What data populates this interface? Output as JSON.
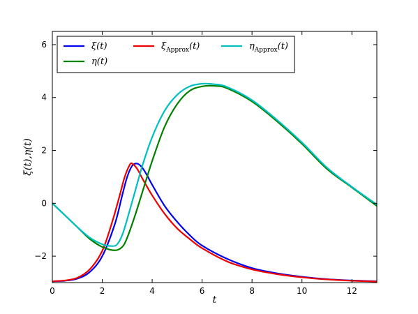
{
  "chart_data": {
    "type": "line",
    "title": "",
    "xlabel": "t",
    "ylabel": "ξ(t),η(t)",
    "xlim": [
      0,
      13
    ],
    "ylim": [
      -3,
      6.5
    ],
    "xticks": [
      0,
      2,
      4,
      6,
      8,
      10,
      12
    ],
    "yticks": [
      -2,
      0,
      2,
      4,
      6
    ],
    "xtick_labels": [
      "0",
      "2",
      "4",
      "6",
      "8",
      "10",
      "12"
    ],
    "ytick_labels": [
      "−2",
      "0",
      "2",
      "4",
      "6"
    ],
    "grid": false,
    "legend_placement": "top",
    "legend": [
      {
        "main": "ξ(t)",
        "sub": "",
        "tail": "",
        "color": "#0000ee"
      },
      {
        "main": "ξ",
        "sub": "Approx",
        "tail": "(t)",
        "color": "#ee0000"
      },
      {
        "main": "η",
        "sub": "Approx",
        "tail": "(t)",
        "color": "#00bfbf"
      },
      {
        "main": "η(t)",
        "sub": "",
        "tail": "",
        "color": "#008000"
      }
    ],
    "series": [
      {
        "name": "ξ(t)",
        "color": "#0000ee",
        "x": [
          0,
          0.5,
          1.0,
          1.5,
          2.0,
          2.5,
          2.8,
          3.0,
          3.2,
          3.4,
          3.6,
          3.8,
          4.0,
          4.5,
          5.0,
          5.5,
          6.0,
          7.0,
          8.0,
          9.0,
          10.0,
          11.0,
          12.0,
          13.0
        ],
        "y": [
          -2.95,
          -2.93,
          -2.85,
          -2.6,
          -2.0,
          -0.8,
          0.3,
          1.0,
          1.42,
          1.5,
          1.35,
          1.05,
          0.7,
          -0.1,
          -0.7,
          -1.2,
          -1.6,
          -2.1,
          -2.45,
          -2.65,
          -2.78,
          -2.87,
          -2.92,
          -2.95
        ]
      },
      {
        "name": "ξ_Approx(t)",
        "color": "#ee0000",
        "x": [
          0,
          0.5,
          1.0,
          1.5,
          2.0,
          2.4,
          2.7,
          2.9,
          3.1,
          3.2,
          3.4,
          3.6,
          4.0,
          4.5,
          5.0,
          5.5,
          6.0,
          7.0,
          8.0,
          9.0,
          10.0,
          11.0,
          12.0,
          13.0
        ],
        "y": [
          -2.95,
          -2.92,
          -2.82,
          -2.5,
          -1.8,
          -0.7,
          0.3,
          1.0,
          1.45,
          1.5,
          1.3,
          0.95,
          0.3,
          -0.4,
          -0.95,
          -1.35,
          -1.7,
          -2.2,
          -2.5,
          -2.68,
          -2.8,
          -2.88,
          -2.93,
          -2.96
        ]
      },
      {
        "name": "η(t)",
        "color": "#008000",
        "x": [
          0,
          0.5,
          1.0,
          1.5,
          2.0,
          2.5,
          2.8,
          3.0,
          3.3,
          3.6,
          4.0,
          4.5,
          5.0,
          5.5,
          6.0,
          6.5,
          7.0,
          8.0,
          9.0,
          10.0,
          11.0,
          12.0,
          13.0
        ],
        "y": [
          0,
          -0.45,
          -0.9,
          -1.35,
          -1.65,
          -1.78,
          -1.65,
          -1.3,
          -0.5,
          0.4,
          1.6,
          2.9,
          3.75,
          4.25,
          4.42,
          4.44,
          4.35,
          3.85,
          3.1,
          2.25,
          1.3,
          0.6,
          -0.1
        ]
      },
      {
        "name": "η_Approx(t)",
        "color": "#00bfbf",
        "x": [
          0,
          0.5,
          1.0,
          1.5,
          2.0,
          2.4,
          2.6,
          2.8,
          3.0,
          3.3,
          3.6,
          4.0,
          4.5,
          5.0,
          5.5,
          6.0,
          6.5,
          7.0,
          8.0,
          9.0,
          10.0,
          11.0,
          12.0,
          13.0
        ],
        "y": [
          0,
          -0.45,
          -0.9,
          -1.3,
          -1.55,
          -1.62,
          -1.55,
          -1.2,
          -0.6,
          0.4,
          1.4,
          2.5,
          3.5,
          4.1,
          4.42,
          4.52,
          4.5,
          4.4,
          3.9,
          3.15,
          2.3,
          1.35,
          0.62,
          -0.05
        ]
      }
    ]
  }
}
